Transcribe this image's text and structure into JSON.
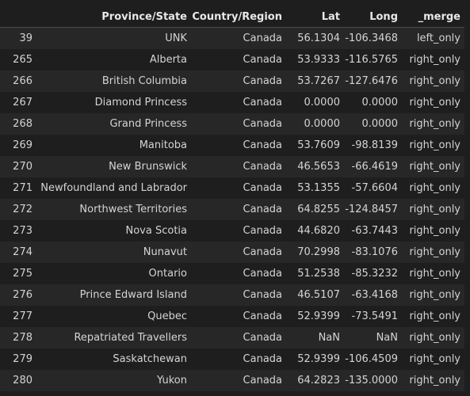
{
  "table": {
    "columns": [
      "",
      "Province/State",
      "Country/Region",
      "Lat",
      "Long",
      "_merge"
    ],
    "rows": [
      [
        "39",
        "UNK",
        "Canada",
        "56.1304",
        "-106.3468",
        "left_only"
      ],
      [
        "265",
        "Alberta",
        "Canada",
        "53.9333",
        "-116.5765",
        "right_only"
      ],
      [
        "266",
        "British Columbia",
        "Canada",
        "53.7267",
        "-127.6476",
        "right_only"
      ],
      [
        "267",
        "Diamond Princess",
        "Canada",
        "0.0000",
        "0.0000",
        "right_only"
      ],
      [
        "268",
        "Grand Princess",
        "Canada",
        "0.0000",
        "0.0000",
        "right_only"
      ],
      [
        "269",
        "Manitoba",
        "Canada",
        "53.7609",
        "-98.8139",
        "right_only"
      ],
      [
        "270",
        "New Brunswick",
        "Canada",
        "46.5653",
        "-66.4619",
        "right_only"
      ],
      [
        "271",
        "Newfoundland and Labrador",
        "Canada",
        "53.1355",
        "-57.6604",
        "right_only"
      ],
      [
        "272",
        "Northwest Territories",
        "Canada",
        "64.8255",
        "-124.8457",
        "right_only"
      ],
      [
        "273",
        "Nova Scotia",
        "Canada",
        "44.6820",
        "-63.7443",
        "right_only"
      ],
      [
        "274",
        "Nunavut",
        "Canada",
        "70.2998",
        "-83.1076",
        "right_only"
      ],
      [
        "275",
        "Ontario",
        "Canada",
        "51.2538",
        "-85.3232",
        "right_only"
      ],
      [
        "276",
        "Prince Edward Island",
        "Canada",
        "46.5107",
        "-63.4168",
        "right_only"
      ],
      [
        "277",
        "Quebec",
        "Canada",
        "52.9399",
        "-73.5491",
        "right_only"
      ],
      [
        "278",
        "Repatriated Travellers",
        "Canada",
        "NaN",
        "NaN",
        "right_only"
      ],
      [
        "279",
        "Saskatchewan",
        "Canada",
        "52.9399",
        "-106.4509",
        "right_only"
      ],
      [
        "280",
        "Yukon",
        "Canada",
        "64.2823",
        "-135.0000",
        "right_only"
      ]
    ]
  }
}
